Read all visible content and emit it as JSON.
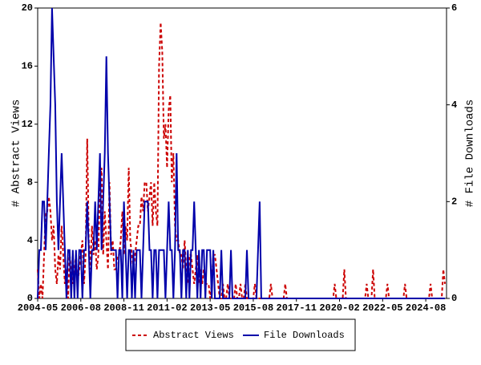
{
  "chart_data": {
    "type": "line",
    "y_label": "# Abstract Views",
    "y2_label": "# File Downloads",
    "x": [
      "2004-05",
      "2004-06",
      "2004-07",
      "2004-08",
      "2004-09",
      "2004-10",
      "2004-11",
      "2004-12",
      "2005-01",
      "2005-02",
      "2005-03",
      "2005-04",
      "2005-05",
      "2005-06",
      "2005-07",
      "2005-08",
      "2005-09",
      "2005-10",
      "2005-11",
      "2005-12",
      "2006-01",
      "2006-02",
      "2006-03",
      "2006-04",
      "2006-05",
      "2006-06",
      "2006-07",
      "2006-08",
      "2006-09",
      "2006-10",
      "2006-11",
      "2006-12",
      "2007-01",
      "2007-02",
      "2007-03",
      "2007-04",
      "2007-05",
      "2007-06",
      "2007-07",
      "2007-08",
      "2007-09",
      "2007-10",
      "2007-11",
      "2007-12",
      "2008-01",
      "2008-02",
      "2008-03",
      "2008-04",
      "2008-05",
      "2008-06",
      "2008-07",
      "2008-08",
      "2008-09",
      "2008-10",
      "2008-11",
      "2008-12",
      "2009-01",
      "2009-02",
      "2009-03",
      "2009-04",
      "2009-05",
      "2009-06",
      "2009-07",
      "2009-08",
      "2009-09",
      "2009-10",
      "2009-11",
      "2009-12",
      "2010-01",
      "2010-02",
      "2010-03",
      "2010-04",
      "2010-05",
      "2010-06",
      "2010-07",
      "2010-08",
      "2010-09",
      "2010-10",
      "2010-11",
      "2010-12",
      "2011-01",
      "2011-02",
      "2011-03",
      "2011-04",
      "2011-05",
      "2011-06",
      "2011-07",
      "2011-08",
      "2011-09",
      "2011-10",
      "2011-11",
      "2011-12",
      "2012-01",
      "2012-02",
      "2012-03",
      "2012-04",
      "2012-05",
      "2012-06",
      "2012-07",
      "2012-08",
      "2012-09",
      "2012-10",
      "2012-11",
      "2012-12",
      "2013-01",
      "2013-02",
      "2013-03",
      "2013-04",
      "2013-05",
      "2013-06",
      "2013-07",
      "2013-08",
      "2013-09",
      "2013-10",
      "2013-11",
      "2013-12",
      "2014-01",
      "2014-02",
      "2014-03",
      "2014-04",
      "2014-05",
      "2014-06",
      "2014-07",
      "2014-08",
      "2014-09",
      "2014-10",
      "2014-11",
      "2014-12",
      "2015-01",
      "2015-02",
      "2015-03",
      "2015-04",
      "2015-05",
      "2015-06",
      "2015-07",
      "2015-08",
      "2015-09",
      "2015-10",
      "2015-11",
      "2015-12",
      "2016-01",
      "2016-02",
      "2016-03",
      "2016-04",
      "2016-05",
      "2016-06",
      "2016-07",
      "2016-08",
      "2016-09",
      "2016-10",
      "2016-11",
      "2016-12",
      "2017-01",
      "2017-02",
      "2017-03",
      "2017-04",
      "2017-05",
      "2017-06",
      "2017-07",
      "2017-08",
      "2017-09",
      "2017-10",
      "2017-11",
      "2017-12",
      "2018-01",
      "2018-02",
      "2018-03",
      "2018-04",
      "2018-05",
      "2018-06",
      "2018-07",
      "2018-08",
      "2018-09",
      "2018-10",
      "2018-11",
      "2018-12",
      "2019-01",
      "2019-02",
      "2019-03",
      "2019-04",
      "2019-05",
      "2019-06",
      "2019-07",
      "2019-08",
      "2019-09",
      "2019-10",
      "2019-11",
      "2019-12",
      "2020-01",
      "2020-02",
      "2020-03",
      "2020-04",
      "2020-05",
      "2020-06",
      "2020-07",
      "2020-08",
      "2020-09",
      "2020-10",
      "2020-11",
      "2020-12",
      "2021-01",
      "2021-02",
      "2021-03",
      "2021-04",
      "2021-05",
      "2021-06",
      "2021-07",
      "2021-08",
      "2021-09",
      "2021-10",
      "2021-11",
      "2021-12",
      "2022-01",
      "2022-02",
      "2022-03",
      "2022-04",
      "2022-05",
      "2022-06",
      "2022-07",
      "2022-08",
      "2022-09",
      "2022-10",
      "2022-11",
      "2022-12",
      "2023-01",
      "2023-02",
      "2023-03",
      "2023-04",
      "2023-05",
      "2023-06",
      "2023-07",
      "2023-08",
      "2023-09",
      "2023-10",
      "2023-11",
      "2023-12",
      "2024-01",
      "2024-02",
      "2024-03",
      "2024-04",
      "2024-05",
      "2024-06",
      "2024-07",
      "2024-08",
      "2024-09",
      "2024-10",
      "2024-11",
      "2024-12",
      "2025-01",
      "2025-02",
      "2025-03",
      "2025-04",
      "2025-05",
      "2025-06",
      "2025-07",
      "2025-08"
    ],
    "series": [
      {
        "name": "Abstract Views",
        "color": "#cc0000",
        "dash": true,
        "values": [
          2,
          0,
          1,
          0,
          3,
          6,
          6,
          7,
          6,
          4,
          5,
          2,
          1,
          3,
          2,
          5,
          3,
          1,
          2,
          0,
          3,
          2,
          1,
          2,
          3,
          1,
          2,
          3,
          4,
          1,
          3,
          11,
          4,
          2,
          5,
          3,
          4,
          2,
          3,
          8,
          9,
          3,
          6,
          4,
          2,
          8,
          3,
          4,
          2,
          2,
          3,
          3,
          4,
          6,
          3,
          5,
          4,
          9,
          4,
          3,
          2,
          3,
          4,
          5,
          5,
          7,
          6,
          8,
          8,
          6,
          7,
          8,
          5,
          8,
          6,
          5,
          16,
          19,
          17,
          11,
          12,
          9,
          13,
          14,
          8,
          10,
          5,
          4,
          4,
          3,
          3,
          2,
          4,
          2,
          1,
          3,
          3,
          2,
          1,
          2,
          3,
          1,
          2,
          1,
          2,
          1,
          1,
          1,
          0,
          1,
          3,
          3,
          2,
          1,
          0,
          0,
          1,
          0,
          0,
          1,
          0,
          0,
          0,
          0,
          1,
          0,
          0,
          1,
          0,
          0,
          1,
          0,
          0,
          0,
          0,
          0,
          1,
          0,
          0,
          0,
          0,
          0,
          0,
          0,
          0,
          0,
          1,
          0,
          0,
          0,
          0,
          0,
          0,
          0,
          0,
          1,
          0,
          0,
          0,
          0,
          0,
          0,
          0,
          0,
          0,
          0,
          0,
          0,
          0,
          0,
          0,
          0,
          0,
          0,
          0,
          0,
          0,
          0,
          0,
          0,
          0,
          0,
          0,
          0,
          0,
          0,
          1,
          0,
          0,
          0,
          0,
          0,
          2,
          0,
          0,
          0,
          0,
          0,
          0,
          0,
          0,
          0,
          0,
          0,
          0,
          0,
          1,
          0,
          0,
          0,
          2,
          0,
          0,
          0,
          0,
          0,
          0,
          0,
          0,
          1,
          0,
          0,
          0,
          0,
          0,
          0,
          0,
          0,
          0,
          0,
          1,
          0,
          0,
          0,
          0,
          0,
          0,
          0,
          0,
          0,
          0,
          0,
          0,
          0,
          0,
          0,
          1,
          0,
          0,
          0,
          0,
          0,
          0,
          0,
          2,
          1
        ]
      },
      {
        "name": "File Downloads",
        "color": "#0000aa",
        "axis": "y2",
        "dash": false,
        "values": [
          0,
          1,
          1,
          2,
          2,
          1,
          2,
          3,
          4,
          6,
          5,
          4,
          2,
          1,
          2,
          3,
          2,
          1,
          0,
          1,
          1,
          0,
          1,
          0,
          1,
          0,
          1,
          1,
          0,
          1,
          1,
          2,
          1,
          0,
          1,
          1,
          2,
          1,
          2,
          3,
          1,
          2,
          3,
          5,
          3,
          2,
          1,
          1,
          1,
          1,
          0,
          1,
          1,
          0,
          2,
          1,
          0,
          1,
          1,
          0,
          1,
          0,
          1,
          1,
          1,
          0,
          1,
          2,
          2,
          2,
          1,
          1,
          0,
          1,
          1,
          0,
          1,
          1,
          1,
          1,
          0,
          1,
          2,
          1,
          1,
          0,
          1,
          3,
          1,
          1,
          0,
          1,
          1,
          0,
          1,
          0,
          1,
          1,
          2,
          1,
          0,
          1,
          0,
          1,
          1,
          0,
          1,
          1,
          1,
          0,
          1,
          0,
          0,
          0,
          0,
          1,
          0,
          0,
          0,
          0,
          0,
          1,
          0,
          0,
          0,
          0,
          0,
          0,
          0,
          0,
          0,
          1,
          0,
          0,
          0,
          0,
          0,
          0,
          1,
          2,
          0,
          0,
          0,
          0,
          0,
          0,
          0,
          0,
          0,
          0,
          0,
          0,
          0,
          0,
          0,
          0,
          0,
          0,
          0,
          0,
          0,
          0,
          0,
          0,
          0,
          0,
          0,
          0,
          0,
          0,
          0,
          0,
          0,
          0,
          0,
          0,
          0,
          0,
          0,
          0,
          0,
          0,
          0,
          0,
          0,
          0,
          0,
          0,
          0,
          0,
          0,
          0,
          0,
          0,
          0,
          0,
          0,
          0,
          0,
          0,
          0,
          0,
          0,
          0,
          0,
          0,
          0,
          0,
          0,
          0,
          0,
          0,
          0,
          0,
          0,
          0,
          0,
          0,
          0,
          0,
          0,
          0,
          0,
          0,
          0,
          0,
          0,
          0,
          0,
          0,
          0,
          0,
          0,
          0,
          0,
          0,
          0,
          0,
          0,
          0,
          0,
          0,
          0,
          0,
          0,
          0,
          0,
          0,
          0,
          0,
          0,
          0,
          0,
          0,
          0,
          0
        ]
      }
    ],
    "xlim": [
      "2004-05",
      "2025-09"
    ],
    "xticks": [
      "2004-05",
      "2006-08",
      "2008-11",
      "2011-02",
      "2013-05",
      "2015-08",
      "2017-11",
      "2020-02",
      "2022-05",
      "2024-08"
    ],
    "ylim": [
      0,
      20
    ],
    "yticks": [
      0,
      4,
      8,
      12,
      16,
      20
    ],
    "y2lim": [
      0,
      6
    ],
    "y2ticks": [
      0,
      2,
      4,
      6
    ],
    "grid": false,
    "legend": "bottom"
  }
}
